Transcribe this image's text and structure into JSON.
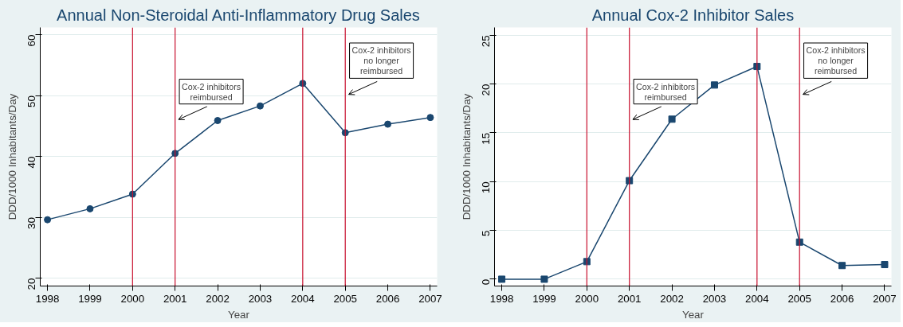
{
  "chart_data": [
    {
      "type": "line",
      "title": "Annual Non-Steroidal Anti-Inflammatory Drug Sales",
      "xlabel": "Year",
      "ylabel": "DDD/1000 Inhabitants/Day",
      "x": [
        1998,
        1999,
        2000,
        2001,
        2002,
        2003,
        2004,
        2005,
        2006,
        2007
      ],
      "series": [
        {
          "color": "#1a476f",
          "values": [
            29.6,
            31.4,
            33.8,
            40.5,
            45.9,
            48.3,
            52.0,
            43.9,
            45.3,
            46.4
          ]
        }
      ],
      "xlim": [
        1997.83,
        2007.16
      ],
      "ylim": [
        18.7,
        61.2
      ],
      "xticks": [
        1998,
        1999,
        2000,
        2001,
        2002,
        2003,
        2004,
        2005,
        2006,
        2007
      ],
      "yticks": [
        20,
        30,
        40,
        50,
        60
      ],
      "grid": "y",
      "marker": "circle",
      "ref_lines": [
        {
          "axis": "x",
          "value": 2000,
          "color": "#c8102e"
        },
        {
          "axis": "x",
          "value": 2001,
          "label": "Cox-2 inhibitors\nreimbursed",
          "color": "#c8102e"
        },
        {
          "axis": "x",
          "value": 2004,
          "color": "#c8102e"
        },
        {
          "axis": "x",
          "value": 2005,
          "label": "Cox-2 inhibitors\nno longer\nreimbursed",
          "color": "#c8102e"
        }
      ]
    },
    {
      "type": "line",
      "title": "Annual Cox-2 Inhibitor Sales",
      "xlabel": "Year",
      "ylabel": "DDD/1000 Inhabitants/Day",
      "x": [
        1998,
        1999,
        2000,
        2001,
        2002,
        2003,
        2004,
        2005,
        2006,
        2007
      ],
      "series": [
        {
          "color": "#1a476f",
          "values": [
            0,
            0,
            1.8,
            10.1,
            16.4,
            19.9,
            21.8,
            3.8,
            1.4,
            1.5
          ]
        }
      ],
      "xlim": [
        1997.83,
        2007.16
      ],
      "ylim": [
        -0.7,
        25.8
      ],
      "xticks": [
        1998,
        1999,
        2000,
        2001,
        2002,
        2003,
        2004,
        2005,
        2006,
        2007
      ],
      "yticks": [
        0,
        5,
        10,
        15,
        20,
        25
      ],
      "grid": "y",
      "marker": "square",
      "ref_lines": [
        {
          "axis": "x",
          "value": 2000,
          "color": "#c8102e"
        },
        {
          "axis": "x",
          "value": 2001,
          "label": "Cox-2 inhibitors\nreimbursed",
          "color": "#c8102e"
        },
        {
          "axis": "x",
          "value": 2004,
          "color": "#c8102e"
        },
        {
          "axis": "x",
          "value": 2005,
          "label": "Cox-2 inhibitors\nno longer\nreimbursed",
          "color": "#c8102e"
        }
      ]
    }
  ]
}
